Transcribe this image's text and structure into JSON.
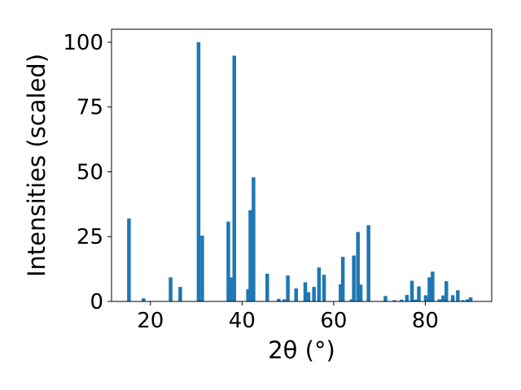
{
  "chart_data": {
    "type": "bar",
    "xlabel": "2θ (°)",
    "ylabel": "Intensities (scaled)",
    "xlim": [
      11.5,
      94.5
    ],
    "ylim": [
      0,
      105
    ],
    "x_ticks": [
      20,
      40,
      60,
      80
    ],
    "y_ticks": [
      0,
      25,
      50,
      75,
      100
    ],
    "bar_width": 0.8,
    "bar_color": "#1f77b4",
    "grid": false,
    "x": [
      15.3,
      18.5,
      24.4,
      26.5,
      30.5,
      31.3,
      37.0,
      37.5,
      38.3,
      41.3,
      41.8,
      42.5,
      45.5,
      48.0,
      49.2,
      50.0,
      51.8,
      53.8,
      54.5,
      55.7,
      56.8,
      57.9,
      61.5,
      62.0,
      63.9,
      64.4,
      65.3,
      65.9,
      67.6,
      71.3,
      73.3,
      74.8,
      76.0,
      77.1,
      77.9,
      78.6,
      80.1,
      80.9,
      81.6,
      83.1,
      83.9,
      84.6,
      86.0,
      87.1,
      88.2,
      89.2,
      89.9
    ],
    "y": [
      32,
      1.2,
      9.3,
      5.6,
      100,
      25.4,
      30.8,
      9.3,
      94.8,
      4.7,
      35.2,
      47.9,
      10.7,
      1.0,
      0.8,
      10.0,
      5.0,
      7.4,
      3.6,
      5.6,
      13.1,
      10.3,
      6.6,
      17.2,
      0.8,
      17.7,
      26.8,
      6.5,
      29.4,
      2.1,
      0.5,
      0.7,
      2.5,
      8.0,
      0.7,
      5.8,
      2.4,
      9.3,
      11.5,
      0.8,
      2.3,
      7.8,
      2.4,
      4.3,
      0.5,
      0.8,
      1.6
    ]
  }
}
